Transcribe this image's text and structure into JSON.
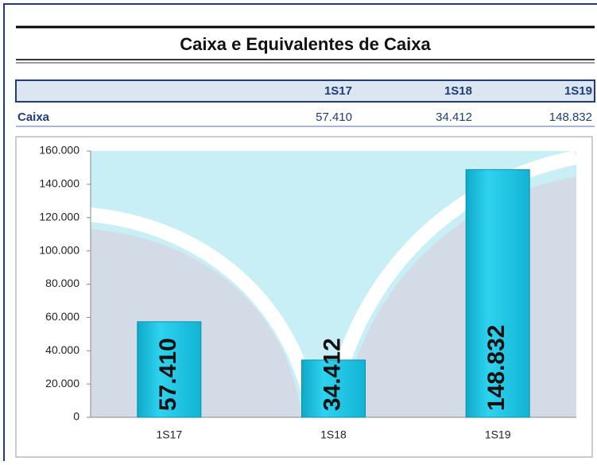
{
  "title": "Caixa e Equivalentes de Caixa",
  "table": {
    "columns": [
      "1S17",
      "1S18",
      "1S19"
    ],
    "rows": [
      {
        "label": "Caixa",
        "values": [
          "57.410",
          "34.412",
          "148.832"
        ]
      }
    ]
  },
  "chart_data": {
    "type": "bar",
    "categories": [
      "1S17",
      "1S18",
      "1S19"
    ],
    "values": [
      57410,
      34412,
      148832
    ],
    "value_labels": [
      "57.410",
      "34.412",
      "148.832"
    ],
    "color": "#1cc6e4",
    "ylim": [
      0,
      160000
    ],
    "yticks": [
      0,
      {
        "value": 20000,
        "label": "20.000"
      },
      {
        "value": 40000,
        "label": "40.000"
      },
      {
        "value": 60000,
        "label": "60.000"
      },
      {
        "value": 80000,
        "label": "80.000"
      },
      {
        "value": 100000,
        "label": "100.000"
      },
      {
        "value": 120000,
        "label": "120.000"
      },
      {
        "value": 140000,
        "label": "140.000"
      },
      {
        "value": 160000,
        "label": "160.000"
      }
    ]
  }
}
